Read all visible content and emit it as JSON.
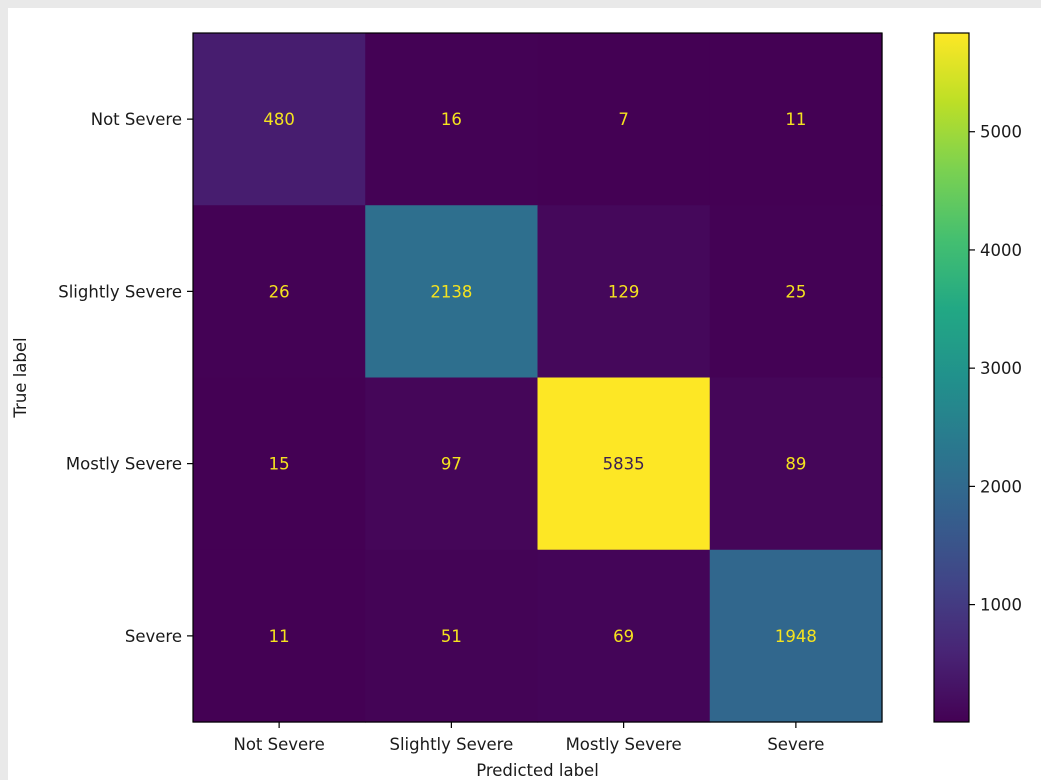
{
  "chart_data": {
    "type": "heatmap",
    "xlabel": "Predicted label",
    "ylabel": "True label",
    "x_categories": [
      "Not Severe",
      "Slightly Severe",
      "Mostly Severe",
      "Severe"
    ],
    "y_categories": [
      "Not Severe",
      "Slightly Severe",
      "Mostly Severe",
      "Severe"
    ],
    "values": [
      [
        480,
        16,
        7,
        11
      ],
      [
        26,
        2138,
        129,
        25
      ],
      [
        15,
        97,
        5835,
        89
      ],
      [
        11,
        51,
        69,
        1948
      ]
    ],
    "colormap": "viridis",
    "vmin": 7,
    "vmax": 5835,
    "colorbar_ticks": [
      1000,
      2000,
      3000,
      4000,
      5000
    ],
    "text_color_low": "#f5e31f",
    "text_color_high": "#3b1f54",
    "grid": false
  }
}
